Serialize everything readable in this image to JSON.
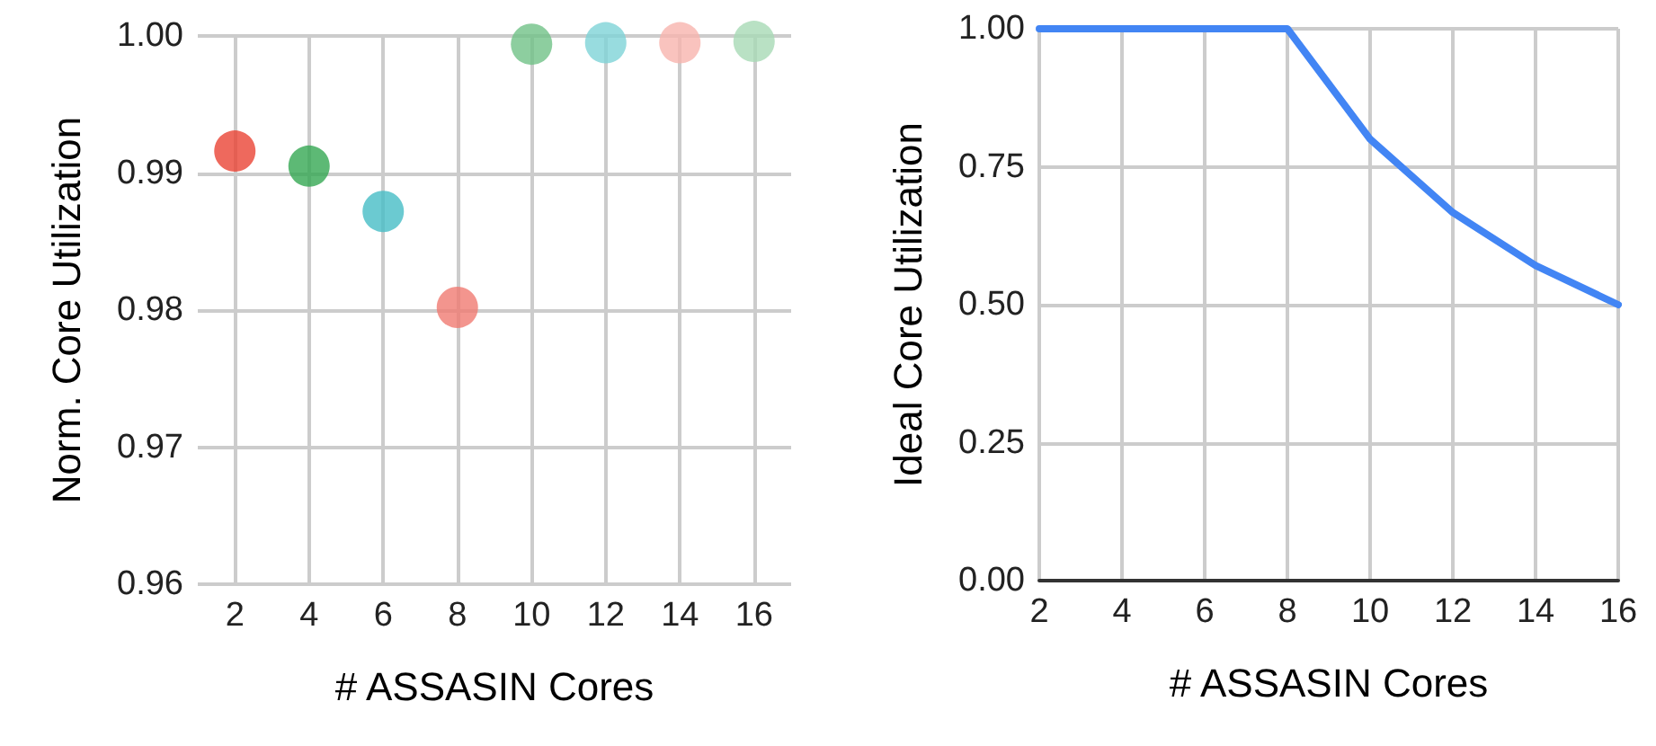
{
  "chart_data": [
    {
      "type": "scatter",
      "xlabel": "# ASSASIN Cores",
      "ylabel": "Norm. Core Utilization",
      "x": [
        2,
        4,
        6,
        8,
        10,
        12,
        14,
        16
      ],
      "values": [
        0.9916,
        0.9905,
        0.9872,
        0.9802,
        0.9994,
        0.9995,
        0.9995,
        0.9996
      ],
      "colors": [
        "#ea4335",
        "#34a853",
        "#46bdc6",
        "#f07b72",
        "#71c287",
        "#7ed3d7",
        "#f7b4ae",
        "#a8dab5"
      ],
      "xlim": [
        1,
        17
      ],
      "xticks": [
        2,
        4,
        6,
        8,
        10,
        12,
        14,
        16
      ],
      "ylim": [
        0.96,
        1
      ],
      "yticks": [
        {
          "value": 0.96,
          "label": "0.96"
        },
        {
          "value": 0.97,
          "label": "0.97"
        },
        {
          "value": 0.98,
          "label": "0.98"
        },
        {
          "value": 0.99,
          "label": "0.99"
        },
        {
          "value": 1,
          "label": "1.00"
        }
      ],
      "grid": true,
      "marker": "circle"
    },
    {
      "type": "line",
      "xlabel": "# ASSASIN Cores",
      "ylabel": "Ideal Core Utilization",
      "x": [
        2,
        4,
        6,
        8,
        10,
        12,
        14,
        16
      ],
      "series": [
        {
          "color": "#4285f4",
          "values": [
            1,
            1,
            1,
            1,
            0.8,
            0.667,
            0.571,
            0.5
          ]
        }
      ],
      "xlim": [
        2,
        16
      ],
      "xticks": [
        2,
        4,
        6,
        8,
        10,
        12,
        14,
        16
      ],
      "ylim": [
        0,
        1
      ],
      "yticks": [
        {
          "value": 0,
          "label": "0.00"
        },
        {
          "value": 0.25,
          "label": "0.25"
        },
        {
          "value": 0.5,
          "label": "0.50"
        },
        {
          "value": 0.75,
          "label": "0.75"
        },
        {
          "value": 1,
          "label": "1.00"
        }
      ],
      "grid": true,
      "marker": "none",
      "line_style": "solid"
    }
  ]
}
